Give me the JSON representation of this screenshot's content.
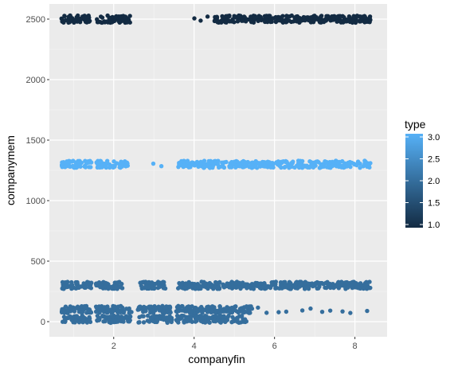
{
  "chart_data": {
    "type": "scatter",
    "xlabel": "companyfin",
    "ylabel": "companymem",
    "x_ticks": [
      2,
      4,
      6,
      8
    ],
    "y_ticks": [
      0,
      500,
      1000,
      1500,
      2000,
      2500
    ],
    "xlim": [
      0.4,
      8.8
    ],
    "ylim": [
      -125,
      2625
    ],
    "grid": true,
    "background": "#ebebeb",
    "legend": {
      "title": "type",
      "position": "right",
      "ticks": [
        1.0,
        1.5,
        2.0,
        2.5,
        3.0
      ],
      "tick_labels": [
        "1.0",
        "1.5",
        "2.0",
        "2.5",
        "3.0"
      ],
      "low_color": "#132b43",
      "high_color": "#56b1f7"
    },
    "jitter_groups": [
      {
        "y": 2500,
        "type": 1,
        "segments": [
          [
            0.7,
            1.45
          ],
          [
            1.55,
            2.45
          ],
          [
            4.5,
            8.4
          ]
        ],
        "extra_x": [
          4.0,
          4.15,
          4.35
        ]
      },
      {
        "y": 1300,
        "type": 3,
        "segments": [
          [
            0.7,
            1.45
          ],
          [
            1.55,
            2.35
          ],
          [
            3.6,
            8.4
          ]
        ],
        "extra_x": [
          3.0,
          3.2
        ]
      },
      {
        "y": 300,
        "type": 2,
        "segments": [
          [
            0.7,
            1.45
          ],
          [
            1.55,
            2.25
          ],
          [
            2.6,
            3.3
          ],
          [
            3.6,
            8.4
          ]
        ],
        "extra_x": []
      },
      {
        "y": 100,
        "type": 2,
        "segments": [
          [
            0.7,
            1.45
          ],
          [
            1.55,
            2.45
          ],
          [
            2.6,
            3.45
          ],
          [
            3.55,
            5.45
          ]
        ],
        "extra_x": [
          5.6,
          5.8,
          6.1,
          6.3,
          6.7,
          6.9,
          7.2,
          7.4,
          7.7,
          7.9,
          8.3
        ]
      },
      {
        "y": 20,
        "type": 2,
        "segments": [
          [
            0.7,
            1.45
          ],
          [
            1.55,
            2.45
          ],
          [
            2.6,
            3.45
          ],
          [
            3.55,
            5.3
          ]
        ],
        "extra_x": []
      }
    ]
  }
}
